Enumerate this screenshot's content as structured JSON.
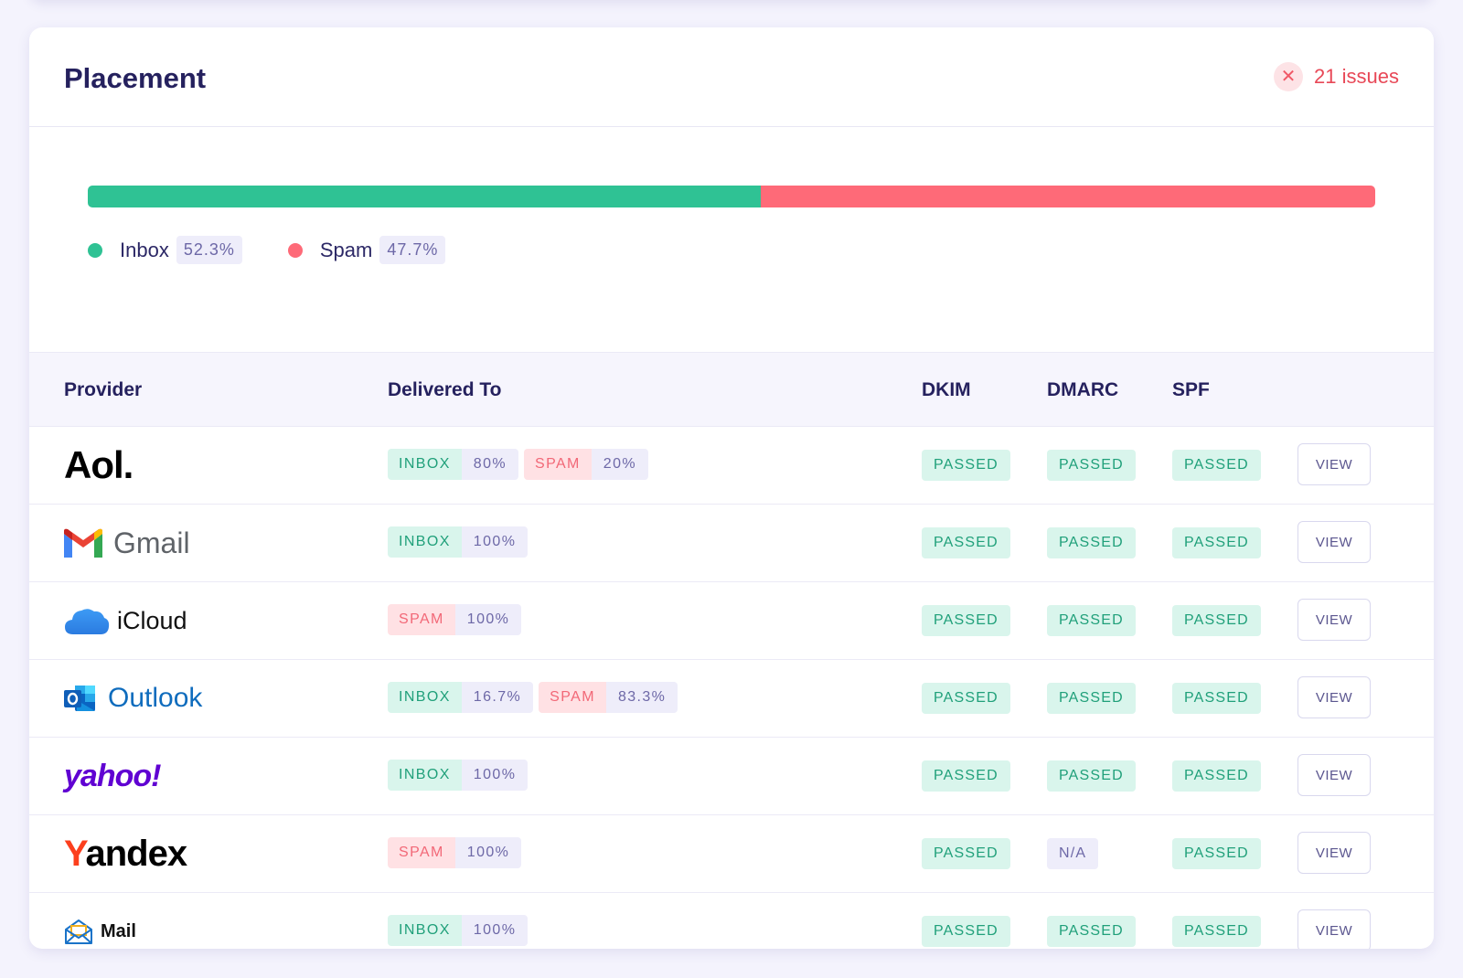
{
  "card": {
    "title": "Placement",
    "issues_icon": "close-icon",
    "issues_label": "21 issues"
  },
  "placement": {
    "inbox_fraction": 0.523,
    "inbox_label": "Inbox",
    "inbox_pct": "52.3%",
    "spam_label": "Spam",
    "spam_pct": "47.7%",
    "colors": {
      "inbox": "#2fc294",
      "spam": "#fe6a78"
    }
  },
  "table": {
    "headers": {
      "provider": "Provider",
      "delivered": "Delivered To",
      "dkim": "DKIM",
      "dmarc": "DMARC",
      "spf": "SPF"
    },
    "rows": [
      {
        "provider": "Aol.",
        "logo_icon": "aol-logo",
        "delivered": [
          {
            "tag": "INBOX",
            "pct": "80%"
          },
          {
            "tag": "SPAM",
            "pct": "20%"
          }
        ],
        "dkim": "PASSED",
        "dmarc": "PASSED",
        "spf": "PASSED",
        "action": "VIEW"
      },
      {
        "provider": "Gmail",
        "logo_icon": "gmail-icon",
        "delivered": [
          {
            "tag": "INBOX",
            "pct": "100%"
          }
        ],
        "dkim": "PASSED",
        "dmarc": "PASSED",
        "spf": "PASSED",
        "action": "VIEW"
      },
      {
        "provider": "iCloud",
        "logo_icon": "icloud-icon",
        "delivered": [
          {
            "tag": "SPAM",
            "pct": "100%"
          }
        ],
        "dkim": "PASSED",
        "dmarc": "PASSED",
        "spf": "PASSED",
        "action": "VIEW"
      },
      {
        "provider": "Outlook",
        "logo_icon": "outlook-icon",
        "delivered": [
          {
            "tag": "INBOX",
            "pct": "16.7%"
          },
          {
            "tag": "SPAM",
            "pct": "83.3%"
          }
        ],
        "dkim": "PASSED",
        "dmarc": "PASSED",
        "spf": "PASSED",
        "action": "VIEW"
      },
      {
        "provider": "yahoo!",
        "logo_icon": "yahoo-logo",
        "delivered": [
          {
            "tag": "INBOX",
            "pct": "100%"
          }
        ],
        "dkim": "PASSED",
        "dmarc": "PASSED",
        "spf": "PASSED",
        "action": "VIEW"
      },
      {
        "provider": "Yandex",
        "logo_icon": "yandex-logo",
        "delivered": [
          {
            "tag": "SPAM",
            "pct": "100%"
          }
        ],
        "dkim": "PASSED",
        "dmarc": "N/A",
        "spf": "PASSED",
        "action": "VIEW"
      },
      {
        "provider": "Mail",
        "logo_icon": "mail-envelope-icon",
        "delivered": [
          {
            "tag": "INBOX",
            "pct": "100%"
          }
        ],
        "dkim": "PASSED",
        "dmarc": "PASSED",
        "spf": "PASSED",
        "action": "VIEW"
      }
    ]
  }
}
